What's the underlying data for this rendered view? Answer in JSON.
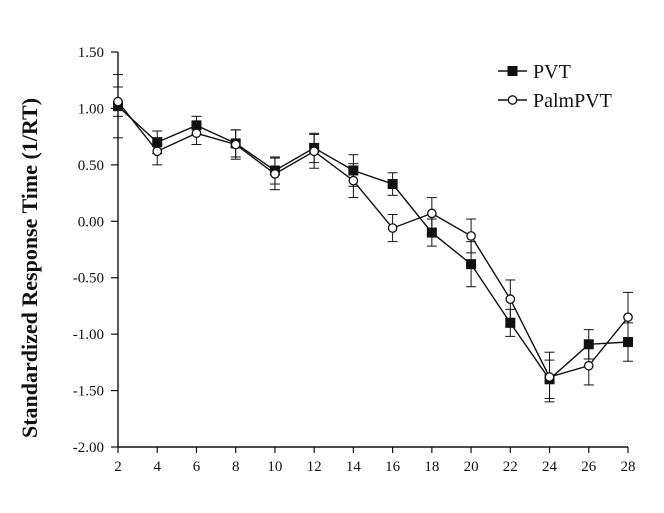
{
  "chart_data": {
    "type": "line",
    "title": "",
    "xlabel": "",
    "ylabel": "Standardized Response Time (1/RT)",
    "x": [
      2,
      4,
      6,
      8,
      10,
      12,
      14,
      16,
      18,
      20,
      22,
      24,
      26,
      28
    ],
    "xlim": [
      2,
      28
    ],
    "ylim": [
      -2.0,
      1.5
    ],
    "x_ticks": [
      "2",
      "4",
      "6",
      "8",
      "10",
      "12",
      "14",
      "16",
      "18",
      "20",
      "22",
      "24",
      "26",
      "28"
    ],
    "y_ticks": [
      "1.50",
      "1.00",
      "0.50",
      "0.00",
      "-0.50",
      "-1.00",
      "-1.50",
      "-2.00"
    ],
    "grid": false,
    "legend_position": "top-right",
    "series": [
      {
        "name": "PVT",
        "marker": "filled-square",
        "color": "#111111",
        "values": [
          1.02,
          0.7,
          0.85,
          0.69,
          0.45,
          0.65,
          0.45,
          0.33,
          -0.1,
          -0.38,
          -0.9,
          -1.4,
          -1.09,
          -1.07
        ],
        "error": [
          0.28,
          0.1,
          0.08,
          0.12,
          0.12,
          0.13,
          0.14,
          0.1,
          0.12,
          0.2,
          0.12,
          0.17,
          0.13,
          0.17
        ]
      },
      {
        "name": "PalmPVT",
        "marker": "open-circle",
        "color": "#111111",
        "values": [
          1.06,
          0.62,
          0.78,
          0.68,
          0.42,
          0.62,
          0.36,
          -0.06,
          0.07,
          -0.13,
          -0.69,
          -1.38,
          -1.28,
          -0.85
        ],
        "error": [
          0.13,
          0.12,
          0.1,
          0.13,
          0.14,
          0.15,
          0.15,
          0.12,
          0.14,
          0.15,
          0.17,
          0.22,
          0.17,
          0.22
        ]
      }
    ]
  }
}
